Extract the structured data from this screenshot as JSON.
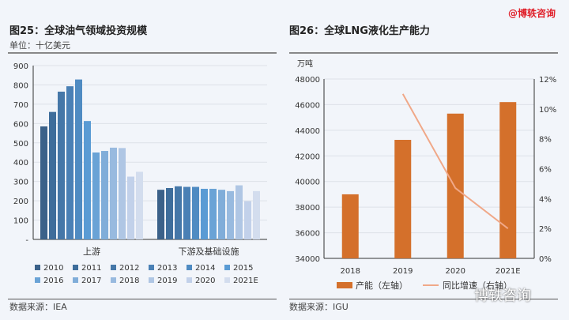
{
  "brand": "@博轶咨询",
  "watermark": "博轶咨询",
  "chart_data": [
    {
      "type": "bar",
      "title": "图25：全球油气领域投资规模",
      "unit": "单位：十亿美元",
      "source": "数据来源：IEA",
      "categories": [
        "上游",
        "下游及基础设施"
      ],
      "ylim": [
        0,
        900
      ],
      "yticks": [
        "-",
        "100",
        "200",
        "300",
        "400",
        "500",
        "600",
        "700",
        "800",
        "900"
      ],
      "legend_position": "bottom",
      "series": [
        {
          "name": "2010",
          "color": "#3b6189",
          "values": [
            585,
            257
          ]
        },
        {
          "name": "2011",
          "color": "#3e6d9b",
          "values": [
            660,
            266
          ]
        },
        {
          "name": "2012",
          "color": "#4577a8",
          "values": [
            765,
            275
          ]
        },
        {
          "name": "2013",
          "color": "#4a80b5",
          "values": [
            793,
            272
          ]
        },
        {
          "name": "2014",
          "color": "#4f8bc2",
          "values": [
            828,
            272
          ]
        },
        {
          "name": "2015",
          "color": "#5a9bd4",
          "values": [
            613,
            262
          ]
        },
        {
          "name": "2016",
          "color": "#6aa3d6",
          "values": [
            450,
            262
          ]
        },
        {
          "name": "2017",
          "color": "#80add9",
          "values": [
            458,
            257
          ]
        },
        {
          "name": "2018",
          "color": "#98badf",
          "values": [
            475,
            250
          ]
        },
        {
          "name": "2019",
          "color": "#afc6e4",
          "values": [
            473,
            280
          ]
        },
        {
          "name": "2020",
          "color": "#c2d1ea",
          "values": [
            325,
            198
          ]
        },
        {
          "name": "2021E",
          "color": "#d3ddee",
          "values": [
            350,
            250
          ]
        }
      ]
    },
    {
      "type": "bar+line",
      "title": "图26：全球LNG液化生产能力",
      "ylabel": "万吨",
      "source": "数据来源：IGU",
      "categories": [
        "2018",
        "2019",
        "2020",
        "2021E"
      ],
      "ylim": [
        34000,
        48000
      ],
      "yticks": [
        "34000",
        "36000",
        "38000",
        "40000",
        "42000",
        "44000",
        "46000",
        "48000"
      ],
      "y2lim": [
        0,
        12
      ],
      "y2ticks": [
        "0%",
        "2%",
        "4%",
        "6%",
        "8%",
        "10%",
        "12%"
      ],
      "legend_position": "bottom",
      "series": [
        {
          "name": "产能（左轴）",
          "type": "bar",
          "color": "#d4702b",
          "values": [
            39000,
            43250,
            45300,
            46200
          ]
        },
        {
          "name": "同比增速（右轴）",
          "type": "line",
          "color": "#f0a888",
          "values": [
            null,
            11.0,
            4.7,
            2.0
          ]
        }
      ]
    }
  ]
}
